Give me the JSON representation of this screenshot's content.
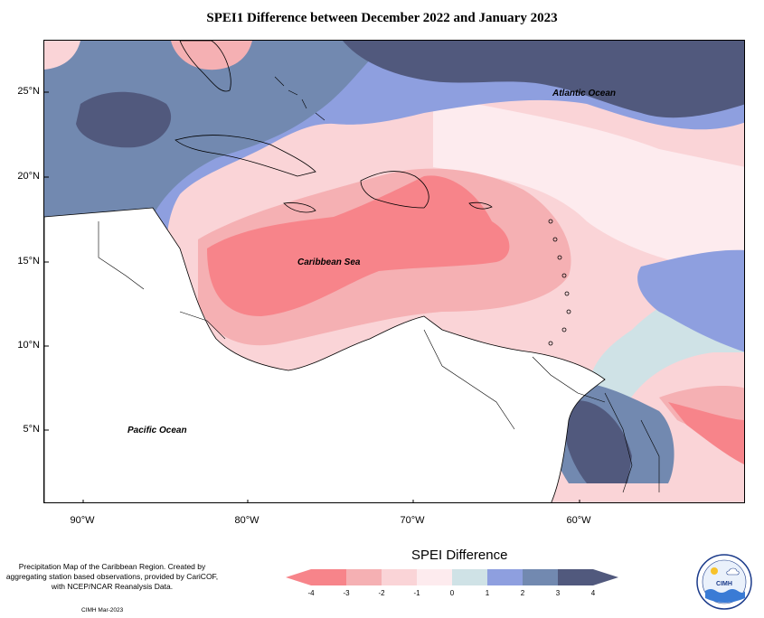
{
  "title": "SPEI1 Difference between December 2022 and January 2023",
  "map": {
    "lat_labels": [
      "25°N",
      "20°N",
      "15°N",
      "10°N",
      "5°N"
    ],
    "lon_labels": [
      "90°W",
      "80°W",
      "70°W",
      "60°W"
    ],
    "regions": [
      "Atlantic Ocean",
      "Caribbean Sea",
      "Pacific Ocean"
    ]
  },
  "legend": {
    "title": "SPEI Difference",
    "ticks": [
      "-4",
      "-3",
      "-2",
      "-1",
      "0",
      "1",
      "2",
      "3",
      "4"
    ],
    "colors": [
      "#f7848a",
      "#f5b0b3",
      "#fad4d7",
      "#fdebee",
      "#cfe2e6",
      "#8e9fdf",
      "#7289b0",
      "#51597d"
    ]
  },
  "footnote": "Precipitation Map of the Caribbean Region. Created by aggregating station based observations, provided by CariCOF, with NCEP/NCAR Reanalysis Data.",
  "credit": "CIMH Mar-2023",
  "logo_text": "CIMH"
}
